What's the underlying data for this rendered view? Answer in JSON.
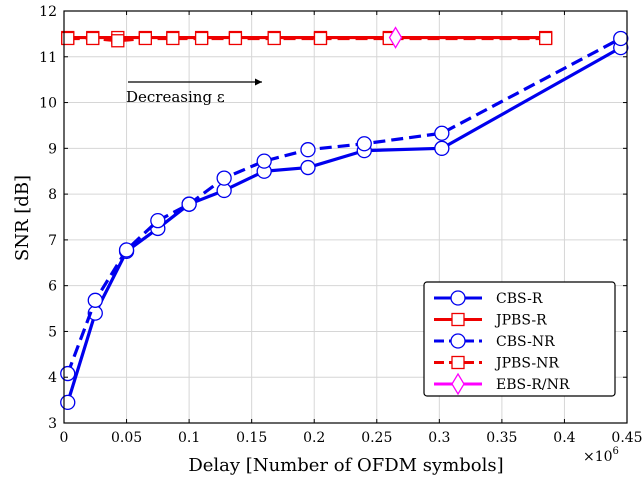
{
  "chart_data": {
    "type": "line",
    "xlabel": "Delay [Number of OFDM symbols]",
    "ylabel": "SNR [dB]",
    "x_multiplier": "×10",
    "x_multiplier_exp": "6",
    "xlim": [
      0,
      0.45
    ],
    "ylim": [
      3,
      12
    ],
    "grid": true,
    "legend_placement": "bottom-right",
    "x_ticks": [
      "0",
      "0.05",
      "0.1",
      "0.15",
      "0.2",
      "0.25",
      "0.3",
      "0.35",
      "0.4",
      "0.45"
    ],
    "y_ticks": [
      "3",
      "4",
      "5",
      "6",
      "7",
      "8",
      "9",
      "10",
      "11",
      "12"
    ],
    "annotation": {
      "text": "Decreasing ε"
    },
    "series": [
      {
        "name": "CBS-R",
        "color": "#0000ee",
        "dash": "solid",
        "marker": "circle",
        "x": [
          0.003,
          0.025,
          0.05,
          0.075,
          0.1,
          0.128,
          0.16,
          0.195,
          0.24,
          0.302,
          0.445
        ],
        "y": [
          3.45,
          5.4,
          6.75,
          7.25,
          7.78,
          8.08,
          8.5,
          8.58,
          8.95,
          9.0,
          11.2
        ]
      },
      {
        "name": "JPBS-R",
        "color": "#ee0000",
        "dash": "solid",
        "marker": "square",
        "x": [
          0.003,
          0.023,
          0.043,
          0.065,
          0.087,
          0.11,
          0.137,
          0.168,
          0.205,
          0.26,
          0.385
        ],
        "y": [
          11.42,
          11.42,
          11.42,
          11.42,
          11.42,
          11.42,
          11.42,
          11.42,
          11.42,
          11.42,
          11.42
        ]
      },
      {
        "name": "CBS-NR",
        "color": "#0000ee",
        "dash": "dashed",
        "marker": "circle",
        "x": [
          0.003,
          0.025,
          0.05,
          0.075,
          0.1,
          0.128,
          0.16,
          0.195,
          0.24,
          0.302,
          0.445
        ],
        "y": [
          4.08,
          5.68,
          6.78,
          7.42,
          7.78,
          8.35,
          8.72,
          8.97,
          9.1,
          9.33,
          11.4
        ]
      },
      {
        "name": "JPBS-NR",
        "color": "#ee0000",
        "dash": "dashed",
        "marker": "square",
        "x": [
          0.003,
          0.023,
          0.043,
          0.065,
          0.087,
          0.11,
          0.137,
          0.168,
          0.205,
          0.26,
          0.385
        ],
        "y": [
          11.4,
          11.4,
          11.35,
          11.4,
          11.4,
          11.4,
          11.4,
          11.4,
          11.4,
          11.4,
          11.4
        ]
      },
      {
        "name": "EBS-R/NR",
        "color": "#ff00ff",
        "dash": "solid",
        "marker": "diamond",
        "x": [
          0.265
        ],
        "y": [
          11.42
        ]
      }
    ]
  }
}
